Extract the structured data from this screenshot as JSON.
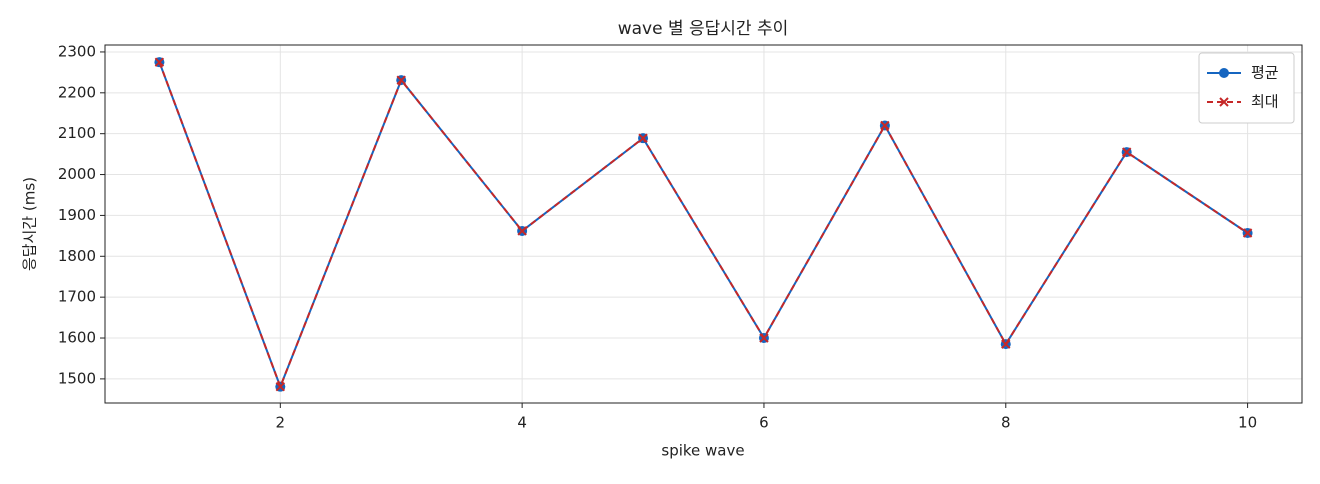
{
  "chart_data": {
    "type": "line",
    "title": "wave 별 응답시간 추이",
    "x_label": "spike wave",
    "y_label": "응답시간 (ms)",
    "x": [
      1,
      2,
      3,
      4,
      5,
      6,
      7,
      8,
      9,
      10
    ],
    "series": [
      {
        "name": "평균",
        "color": "#1565c0",
        "marker": "circle",
        "dash": false,
        "values": [
          2275,
          1481,
          2231,
          1862,
          2089,
          1600,
          2120,
          1585,
          2055,
          1857
        ]
      },
      {
        "name": "최대",
        "color": "#c62828",
        "marker": "x",
        "dash": true,
        "values": [
          2275,
          1481,
          2231,
          1862,
          2089,
          1600,
          2120,
          1585,
          2055,
          1857
        ]
      }
    ],
    "xlim": [
      0.55,
      10.45
    ],
    "xticks": [
      2,
      4,
      6,
      8,
      10
    ],
    "ylim": [
      1441,
      2317
    ],
    "yticks": [
      1500,
      1600,
      1700,
      1800,
      1900,
      2000,
      2100,
      2200,
      2300
    ],
    "grid": true,
    "legend": "upper right"
  }
}
